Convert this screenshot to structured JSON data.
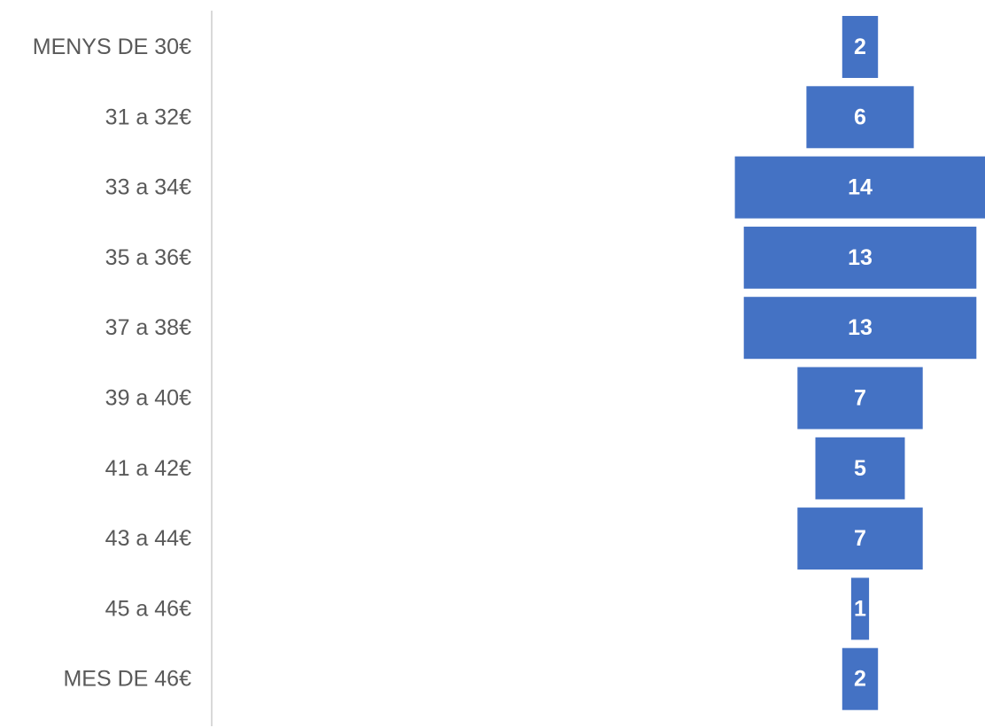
{
  "chart_data": {
    "type": "bar",
    "subtype": "funnel",
    "orientation": "horizontal",
    "categories": [
      "MENYS DE 30€",
      "31 a 32€",
      "33 a 34€",
      "35 a 36€",
      "37 a 38€",
      "39 a 40€",
      "41 a 42€",
      "43 a 44€",
      "45 a 46€",
      "MES DE 46€"
    ],
    "values": [
      2,
      6,
      14,
      13,
      13,
      7,
      5,
      7,
      1,
      2
    ],
    "data_labels": [
      "2",
      "6",
      "14",
      "13",
      "13",
      "7",
      "5",
      "7",
      "1",
      "2"
    ],
    "title": "",
    "xlabel": "",
    "ylabel": "",
    "legend": "none",
    "grid": false,
    "bars_centered": true
  },
  "colors": {
    "bar": "#4472c4",
    "bar_label": "#ffffff",
    "category_label": "#595959",
    "axis_line": "#d9d9d9",
    "background": "#ffffff"
  }
}
